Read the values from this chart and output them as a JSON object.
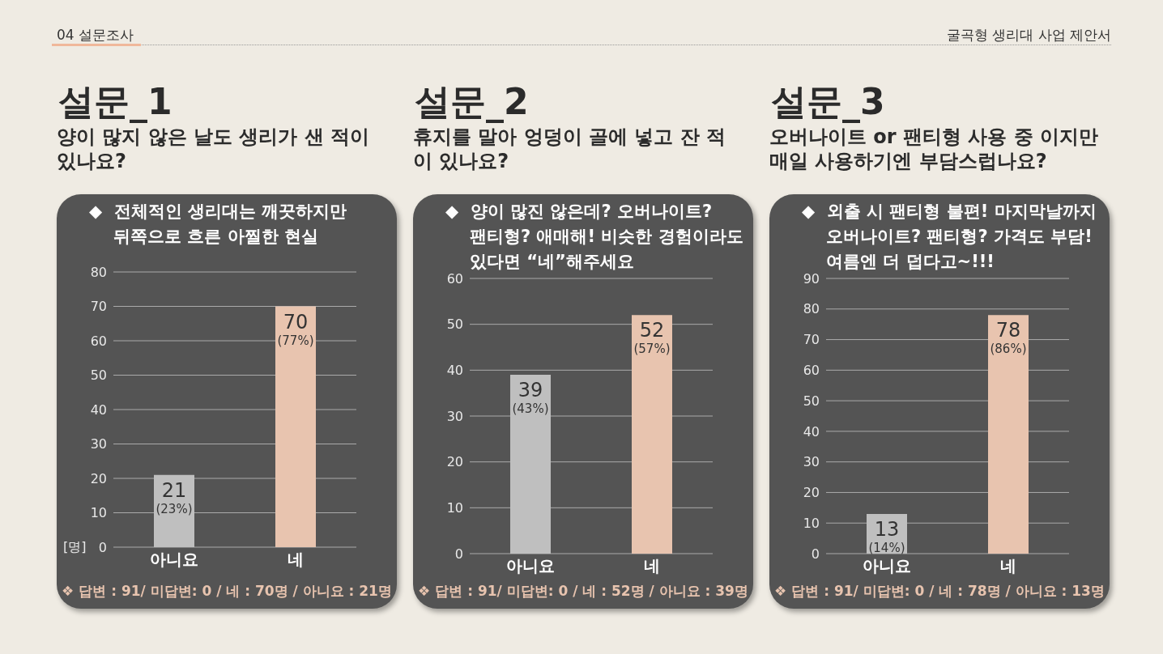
{
  "chart_data": [
    {
      "type": "bar",
      "title": "설문_1",
      "subtitle": "양이 많지 않은 날도 생리가 샌 적이 있나요?",
      "ylabel": "[명]",
      "categories": [
        "아니요",
        "네"
      ],
      "values": [
        21,
        70
      ],
      "colors": [
        "#bfbfbf",
        "#e8c4af"
      ],
      "value_labels": [
        "21\n(23%)",
        "70\n(77%)"
      ],
      "ylim": [
        0,
        80
      ],
      "yticks": [
        0,
        10,
        20,
        30,
        40,
        50,
        60,
        70,
        80
      ],
      "grid": "y",
      "legend": false,
      "annotations": [
        "◆  전체적인 생리대는 깨끗하지만\n뒤쪽으로 흐른 아찔한 현실",
        "❖ 답변 : 91/ 미답변: 0 / 네 : 70명 / 아니요 : 21명",
        "04 설문조사",
        "굴곡형 생리대 사업 제안서"
      ]
    },
    {
      "type": "bar",
      "title": "설문_2",
      "subtitle": "휴지를 말아 엉덩이 골에 넣고 잔 적이 있나요?",
      "categories": [
        "아니요",
        "네"
      ],
      "values": [
        39,
        52
      ],
      "colors": [
        "#bfbfbf",
        "#e8c4af"
      ],
      "value_labels": [
        "39\n(43%)",
        "52\n(57%)"
      ],
      "ylim": [
        0,
        60
      ],
      "yticks": [
        0,
        10,
        20,
        30,
        40,
        50,
        60
      ],
      "grid": "y",
      "legend": false,
      "annotations": [
        "◆  양이 많진 않은데? 오버나이트?\n팬티형? 애매해! 비슷한 경험이라도\n있다면 “네”해주세요",
        "❖ 답변 : 91/ 미답변: 0 / 네 : 52명 / 아니요 : 39명"
      ]
    },
    {
      "type": "bar",
      "title": "설문_3",
      "subtitle": "오버나이트 or 팬티형 사용 중 이지만 매일 사용하기엔 부담스럽나요?",
      "categories": [
        "아니요",
        "네"
      ],
      "values": [
        13,
        78
      ],
      "colors": [
        "#bfbfbf",
        "#e8c4af"
      ],
      "value_labels": [
        "13\n(14%)",
        "78\n(86%)"
      ],
      "ylim": [
        0,
        90
      ],
      "yticks": [
        0,
        10,
        20,
        30,
        40,
        50,
        60,
        70,
        80,
        90
      ],
      "grid": "y",
      "legend": false,
      "annotations": [
        "◆  외출 시 팬티형 불편! 마지막날까지\n오버나이트? 팬티형? 가격도 부담!\n여름엔 더 덥다고~!!!",
        "❖ 답변 : 91/ 미답변: 0 / 네 : 78명 / 아니요 : 13명"
      ]
    }
  ]
}
